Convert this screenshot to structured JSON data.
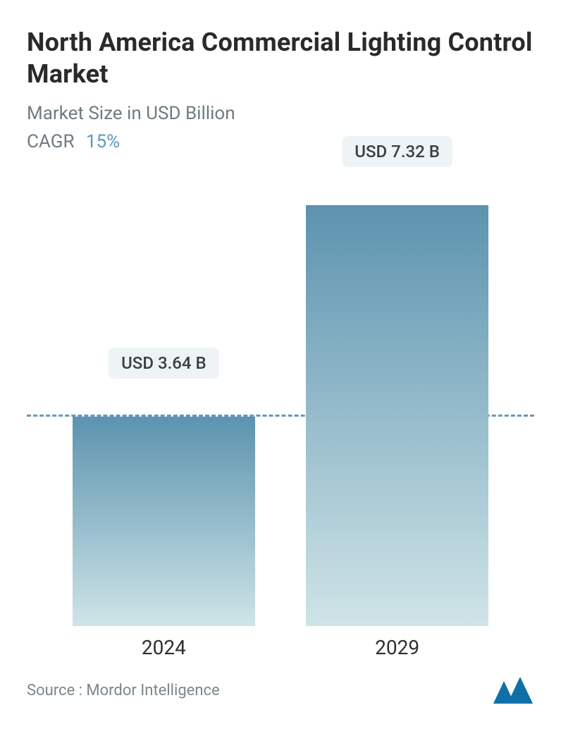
{
  "title": "North America Commercial Lighting Control Market",
  "subtitle": "Market Size in USD Billion",
  "cagr_label": "CAGR",
  "cagr_value": "15%",
  "chart": {
    "type": "bar",
    "ylim": [
      0,
      8.0
    ],
    "background_color": "#ffffff",
    "dashed_line_value": 3.64,
    "dashed_line_color": "#6a98b4",
    "dashed_line_width": 3,
    "bar_width_pct": 36,
    "bar_gap_pct": 10,
    "bars": [
      {
        "category": "2024",
        "value": 3.64,
        "label": "USD 3.64 B",
        "gradient_top": "#5c93af",
        "gradient_bottom": "#cfe4e7"
      },
      {
        "category": "2029",
        "value": 7.32,
        "label": "USD 7.32 B",
        "gradient_top": "#5c93af",
        "gradient_bottom": "#cfe4e7"
      }
    ],
    "bar_label_bg": "#eef3f5",
    "bar_label_color": "#3a3f44",
    "bar_label_fontsize": 24,
    "xlabel_fontsize": 28,
    "xlabel_color": "#2f2f2f"
  },
  "footer": {
    "source_text": "Source :  Mordor Intelligence",
    "logo_colors": {
      "fill": "#0f70a8"
    }
  },
  "colors": {
    "title": "#2a2a2a",
    "subtitle": "#6f7b82",
    "cagr_value": "#5c9bbd"
  },
  "typography": {
    "title_fontsize": 36,
    "title_weight": 700,
    "subtitle_fontsize": 26,
    "source_fontsize": 22
  }
}
